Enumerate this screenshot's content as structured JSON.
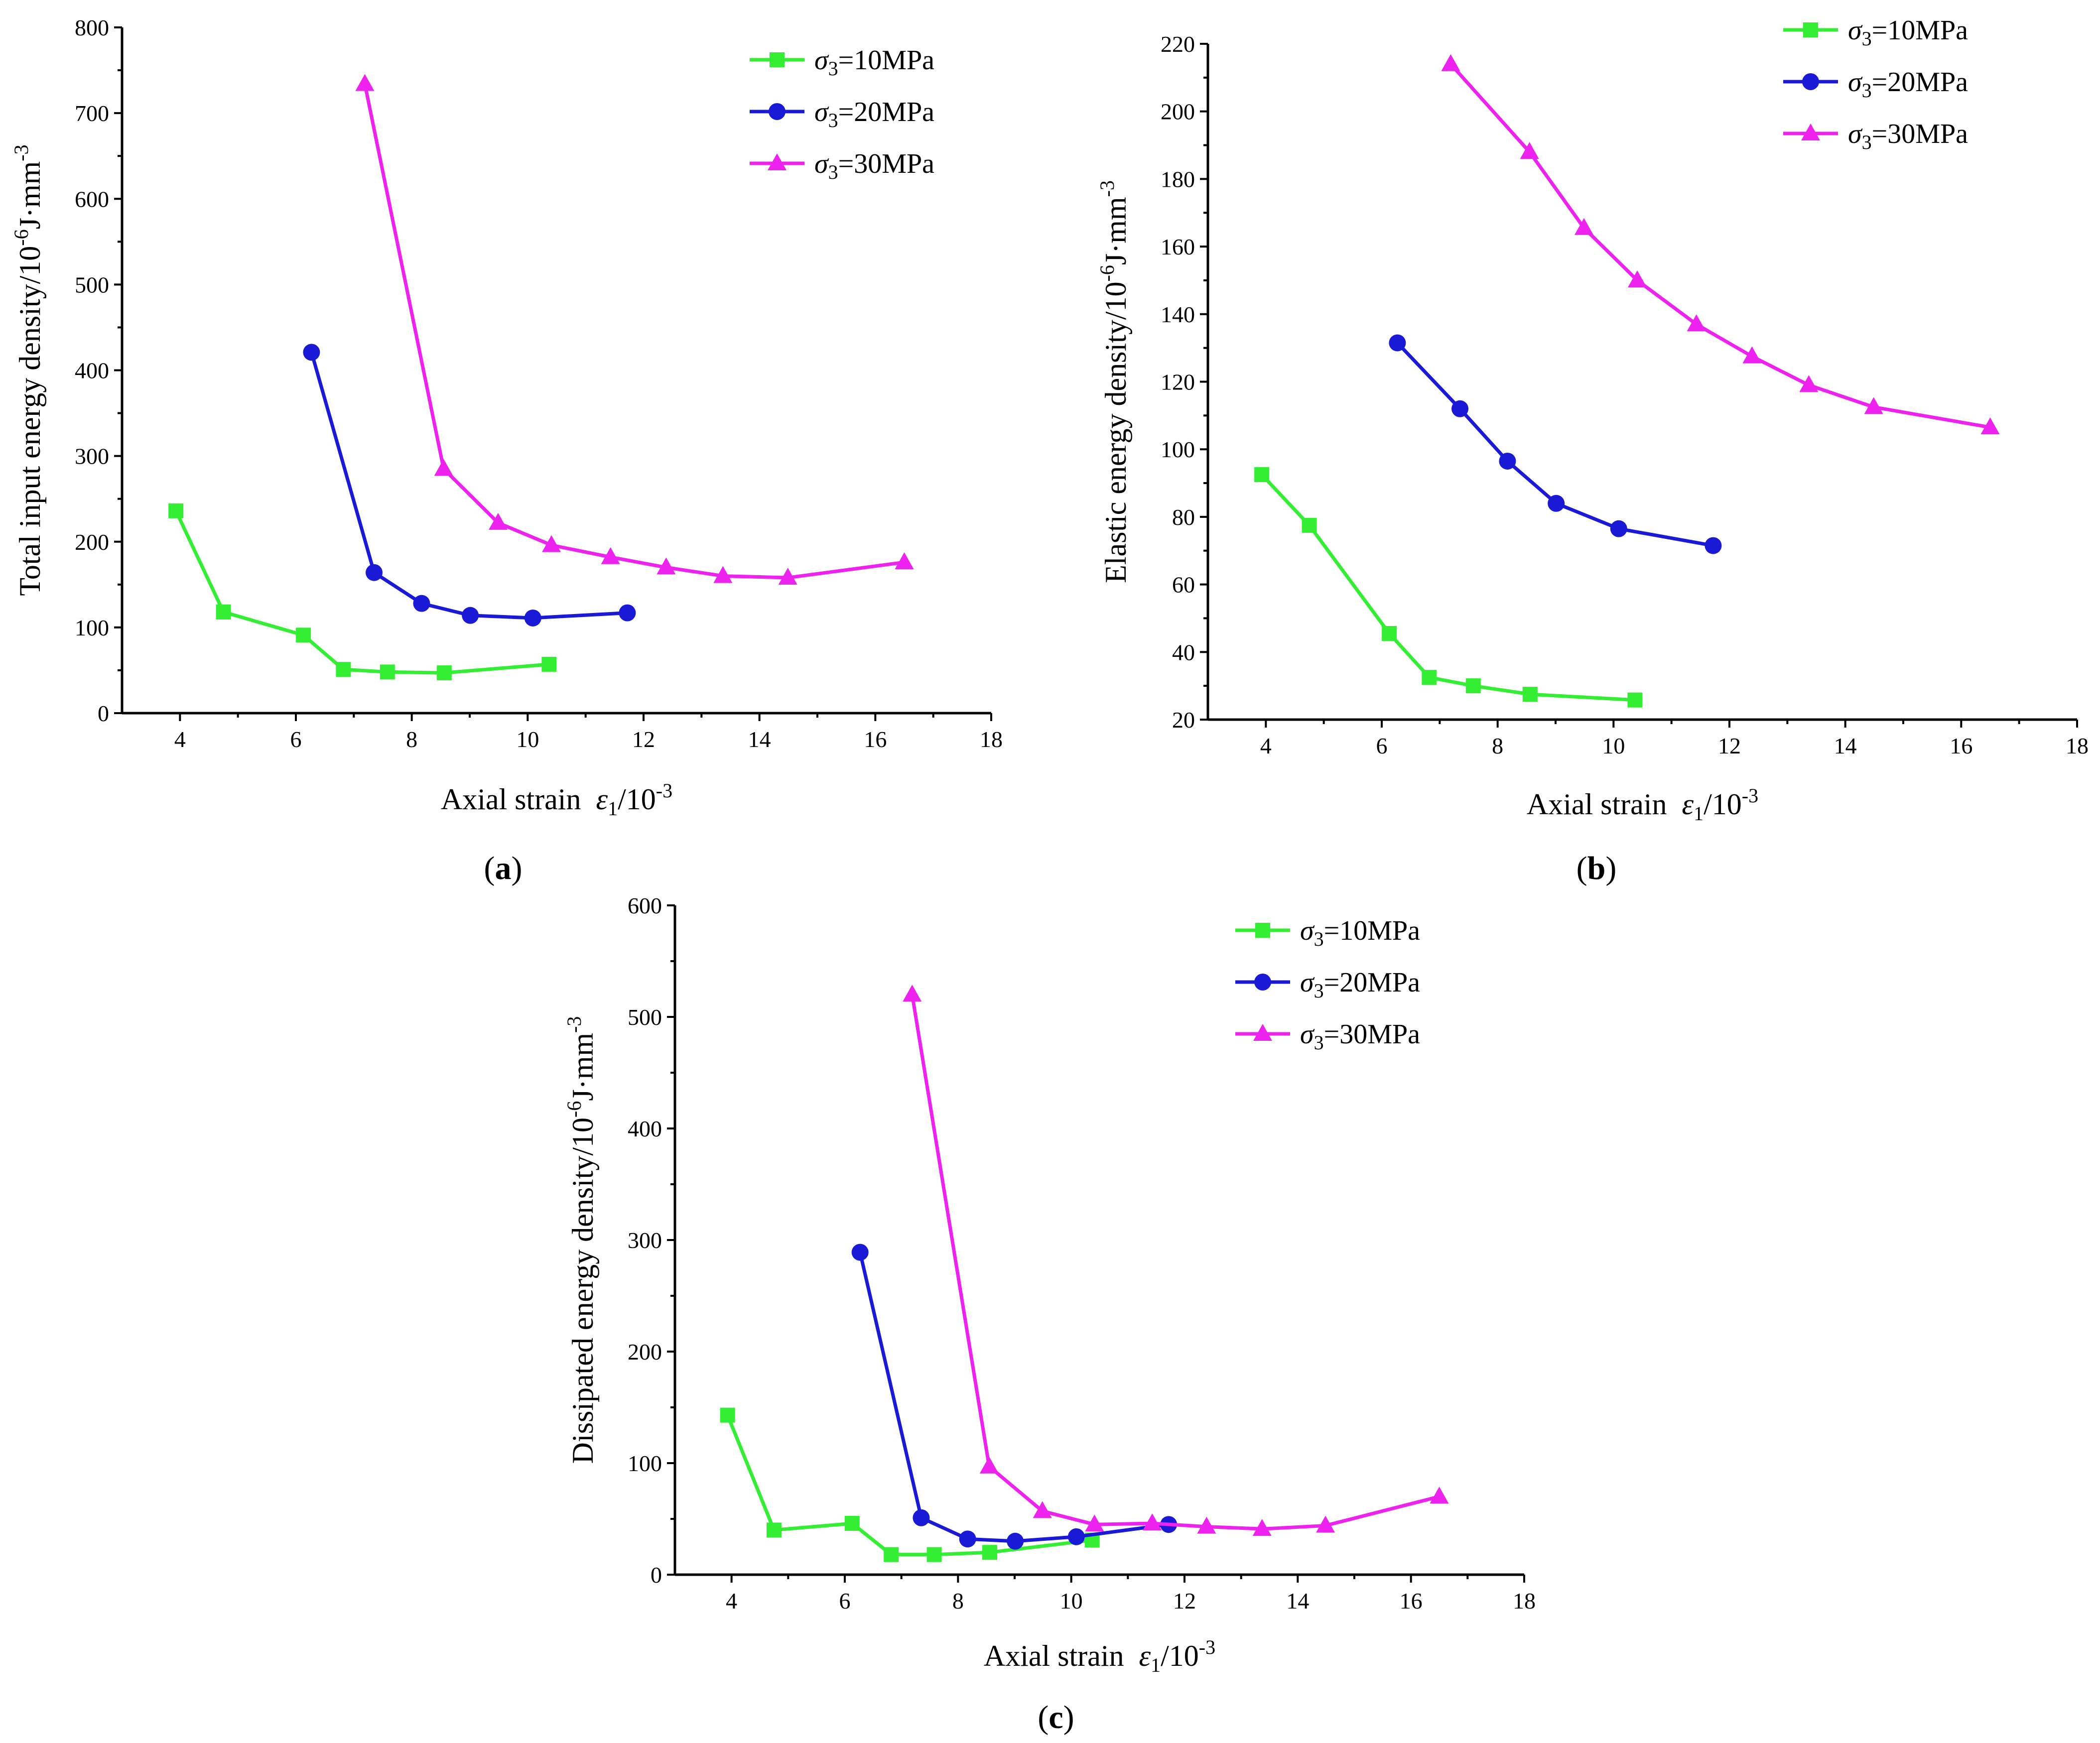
{
  "colors": {
    "s10": "#33ee33",
    "s20": "#1a1ad6",
    "s30": "#ee22ee"
  },
  "chart_data": [
    {
      "id": "a",
      "type": "line",
      "panel_label": "a",
      "xlabel_prefix": "Axial strain",
      "xlabel_symbol": "ε",
      "xlabel_sub": "1",
      "xlabel_unit": "/10",
      "xlabel_exp": "-3",
      "ylabel": "Total input energy density/10",
      "ylabel_exp1": "-6",
      "ylabel_mid": "J·mm",
      "ylabel_exp2": "-3",
      "xlim": [
        3,
        18
      ],
      "ylim": [
        0,
        800
      ],
      "xticks": [
        4,
        6,
        8,
        10,
        12,
        14,
        16,
        18
      ],
      "yticks": [
        0,
        100,
        200,
        300,
        400,
        500,
        600,
        700,
        800
      ],
      "legend_position": "top-right",
      "series": [
        {
          "name": "σ3=10MPa",
          "legend_symbol": "σ",
          "legend_sub": "3",
          "legend_rest": "=10MPa",
          "marker": "square",
          "color_key": "s10",
          "x": [
            3.93,
            4.75,
            6.13,
            6.82,
            7.58,
            8.56,
            10.37
          ],
          "y": [
            236,
            118,
            91,
            51,
            48,
            47,
            57
          ]
        },
        {
          "name": "σ3=20MPa",
          "legend_symbol": "σ",
          "legend_sub": "3",
          "legend_rest": "=20MPa",
          "marker": "circle",
          "color_key": "s20",
          "x": [
            6.27,
            7.35,
            8.17,
            9.01,
            10.09,
            11.72
          ],
          "y": [
            421,
            164,
            128,
            114,
            111,
            117
          ]
        },
        {
          "name": "σ3=30MPa",
          "legend_symbol": "σ",
          "legend_sub": "3",
          "legend_rest": "=30MPa",
          "marker": "triangle",
          "color_key": "s30",
          "x": [
            7.19,
            8.55,
            9.49,
            10.41,
            11.43,
            12.39,
            13.37,
            14.49,
            16.5
          ],
          "y": [
            734,
            285,
            222,
            196,
            182,
            170,
            160,
            158,
            176
          ]
        }
      ]
    },
    {
      "id": "b",
      "type": "line",
      "panel_label": "b",
      "xlabel_prefix": "Axial strain",
      "xlabel_symbol": "ε",
      "xlabel_sub": "1",
      "xlabel_unit": "/10",
      "xlabel_exp": "-3",
      "ylabel": "Elastic energy density/10",
      "ylabel_exp1": "-6",
      "ylabel_mid": "J·mm",
      "ylabel_exp2": "-3",
      "xlim": [
        3,
        18
      ],
      "ylim": [
        20,
        220
      ],
      "xticks": [
        4,
        6,
        8,
        10,
        12,
        14,
        16,
        18
      ],
      "yticks": [
        20,
        40,
        60,
        80,
        100,
        120,
        140,
        160,
        180,
        200,
        220
      ],
      "legend_position": "top-right",
      "series": [
        {
          "name": "σ3=10MPa",
          "legend_symbol": "σ",
          "legend_sub": "3",
          "legend_rest": "=10MPa",
          "marker": "square",
          "color_key": "s10",
          "x": [
            3.93,
            4.75,
            6.13,
            6.82,
            7.58,
            8.56,
            10.37
          ],
          "y": [
            92.5,
            77.5,
            45.5,
            32.5,
            30,
            27.5,
            25.8
          ]
        },
        {
          "name": "σ3=20MPa",
          "legend_symbol": "σ",
          "legend_sub": "3",
          "legend_rest": "=20MPa",
          "marker": "circle",
          "color_key": "s20",
          "x": [
            6.27,
            7.35,
            8.17,
            9.01,
            10.09,
            11.72
          ],
          "y": [
            131.5,
            112,
            96.5,
            84,
            76.5,
            71.5
          ]
        },
        {
          "name": "σ3=30MPa",
          "legend_symbol": "σ",
          "legend_sub": "3",
          "legend_rest": "=30MPa",
          "marker": "triangle",
          "color_key": "s30",
          "x": [
            7.19,
            8.55,
            9.49,
            10.41,
            11.43,
            12.39,
            13.37,
            14.49,
            16.5
          ],
          "y": [
            214,
            188,
            165.5,
            150,
            137,
            127.5,
            119,
            112.5,
            106.5
          ]
        }
      ]
    },
    {
      "id": "c",
      "type": "line",
      "panel_label": "c",
      "xlabel_prefix": "Axial strain",
      "xlabel_symbol": "ε",
      "xlabel_sub": "1",
      "xlabel_unit": "/10",
      "xlabel_exp": "-3",
      "ylabel": "Dissipated energy density/10",
      "ylabel_exp1": "-6",
      "ylabel_mid": "J·mm",
      "ylabel_exp2": "-3",
      "xlim": [
        3,
        18
      ],
      "ylim": [
        0,
        600
      ],
      "xticks": [
        4,
        6,
        8,
        10,
        12,
        14,
        16,
        18
      ],
      "yticks": [
        0,
        100,
        200,
        300,
        400,
        500,
        600
      ],
      "legend_position": "top-right",
      "series": [
        {
          "name": "σ3=10MPa",
          "legend_symbol": "σ",
          "legend_sub": "3",
          "legend_rest": "=10MPa",
          "marker": "square",
          "color_key": "s10",
          "x": [
            3.93,
            4.75,
            6.13,
            6.82,
            7.58,
            8.56,
            10.37
          ],
          "y": [
            143,
            40,
            46,
            18,
            18,
            20,
            31
          ]
        },
        {
          "name": "σ3=20MPa",
          "legend_symbol": "σ",
          "legend_sub": "3",
          "legend_rest": "=20MPa",
          "marker": "circle",
          "color_key": "s20",
          "x": [
            6.27,
            7.35,
            8.17,
            9.01,
            10.09,
            11.72
          ],
          "y": [
            289,
            51,
            32,
            30,
            34,
            45
          ]
        },
        {
          "name": "σ3=30MPa",
          "legend_symbol": "σ",
          "legend_sub": "3",
          "legend_rest": "=30MPa",
          "marker": "triangle",
          "color_key": "s30",
          "x": [
            7.19,
            8.55,
            9.49,
            10.41,
            11.43,
            12.39,
            13.37,
            14.49,
            16.5
          ],
          "y": [
            520,
            97,
            57,
            45,
            46,
            43,
            41,
            44,
            70
          ]
        }
      ]
    }
  ]
}
